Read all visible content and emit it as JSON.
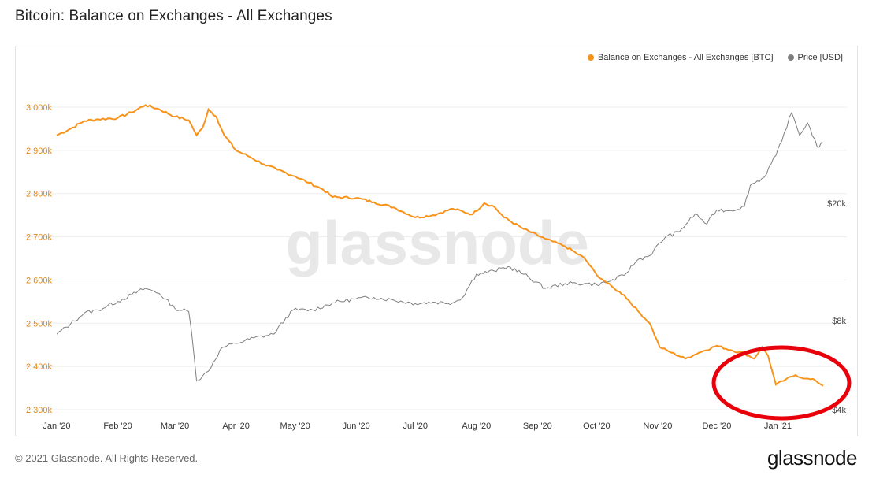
{
  "title": "Bitcoin: Balance on Exchanges - All Exchanges",
  "footer": {
    "copyright": "© 2021 Glassnode. All Rights Reserved.",
    "logo": "glassnode"
  },
  "watermark": "glassnode",
  "colors": {
    "balance": "#f7931a",
    "price": "#7f7f7f",
    "annotation": "#e8000b"
  },
  "chart_data": {
    "type": "line",
    "title": "Bitcoin: Balance on Exchanges - All Exchanges",
    "x_tick_labels": [
      "Jan '20",
      "Feb '20",
      "Mar '20",
      "Apr '20",
      "May '20",
      "Jun '20",
      "Jul '20",
      "Aug '20",
      "Sep '20",
      "Oct '20",
      "Nov '20",
      "Dec '20",
      "Jan '21"
    ],
    "y_left": {
      "ticks": [
        2300000,
        2400000,
        2500000,
        2600000,
        2700000,
        2800000,
        2900000,
        3000000
      ],
      "tick_labels": [
        "2 300k",
        "2 400k",
        "2 500k",
        "2 600k",
        "2 700k",
        "2 800k",
        "2 900k",
        "3 000k"
      ],
      "range": [
        2290000,
        3050000
      ]
    },
    "y_right": {
      "scale": "log",
      "ticks": [
        4000,
        8000,
        20000
      ],
      "tick_labels": [
        "$4k",
        "$8k",
        "$20k"
      ]
    },
    "legend_position": "top-right",
    "series": [
      {
        "name": "Balance on Exchanges - All Exchanges [BTC]",
        "axis": "left",
        "points": [
          [
            "2020-01-01",
            2935000
          ],
          [
            "2020-01-08",
            2950000
          ],
          [
            "2020-01-15",
            2968000
          ],
          [
            "2020-01-22",
            2972000
          ],
          [
            "2020-02-01",
            2975000
          ],
          [
            "2020-02-08",
            2988000
          ],
          [
            "2020-02-15",
            3005000
          ],
          [
            "2020-02-22",
            2995000
          ],
          [
            "2020-03-01",
            2978000
          ],
          [
            "2020-03-08",
            2970000
          ],
          [
            "2020-03-12",
            2935000
          ],
          [
            "2020-03-15",
            2952000
          ],
          [
            "2020-03-18",
            2995000
          ],
          [
            "2020-03-22",
            2978000
          ],
          [
            "2020-03-26",
            2935000
          ],
          [
            "2020-04-01",
            2900000
          ],
          [
            "2020-04-08",
            2885000
          ],
          [
            "2020-04-15",
            2868000
          ],
          [
            "2020-04-22",
            2855000
          ],
          [
            "2020-05-01",
            2840000
          ],
          [
            "2020-05-08",
            2825000
          ],
          [
            "2020-05-15",
            2810000
          ],
          [
            "2020-05-20",
            2792000
          ],
          [
            "2020-06-01",
            2790000
          ],
          [
            "2020-06-10",
            2780000
          ],
          [
            "2020-06-20",
            2768000
          ],
          [
            "2020-07-01",
            2745000
          ],
          [
            "2020-07-10",
            2750000
          ],
          [
            "2020-07-20",
            2765000
          ],
          [
            "2020-07-30",
            2752000
          ],
          [
            "2020-08-05",
            2778000
          ],
          [
            "2020-08-10",
            2770000
          ],
          [
            "2020-08-15",
            2745000
          ],
          [
            "2020-08-25",
            2718000
          ],
          [
            "2020-09-05",
            2695000
          ],
          [
            "2020-09-15",
            2678000
          ],
          [
            "2020-09-25",
            2650000
          ],
          [
            "2020-10-01",
            2612000
          ],
          [
            "2020-10-05",
            2598000
          ],
          [
            "2020-10-10",
            2580000
          ],
          [
            "2020-10-15",
            2565000
          ],
          [
            "2020-10-22",
            2528000
          ],
          [
            "2020-10-28",
            2500000
          ],
          [
            "2020-11-02",
            2445000
          ],
          [
            "2020-11-08",
            2432000
          ],
          [
            "2020-11-15",
            2418000
          ],
          [
            "2020-11-22",
            2432000
          ],
          [
            "2020-12-01",
            2448000
          ],
          [
            "2020-12-08",
            2438000
          ],
          [
            "2020-12-15",
            2430000
          ],
          [
            "2020-12-20",
            2418000
          ],
          [
            "2020-12-24",
            2445000
          ],
          [
            "2020-12-27",
            2425000
          ],
          [
            "2020-12-31",
            2358000
          ],
          [
            "2021-01-05",
            2370000
          ],
          [
            "2021-01-10",
            2380000
          ],
          [
            "2021-01-15",
            2372000
          ],
          [
            "2021-01-20",
            2368000
          ],
          [
            "2021-01-24",
            2355000
          ]
        ]
      },
      {
        "name": "Price [USD]",
        "axis": "right",
        "points": [
          [
            "2020-01-01",
            7200
          ],
          [
            "2020-01-08",
            7800
          ],
          [
            "2020-01-15",
            8500
          ],
          [
            "2020-01-22",
            8700
          ],
          [
            "2020-02-01",
            9300
          ],
          [
            "2020-02-08",
            9800
          ],
          [
            "2020-02-15",
            10300
          ],
          [
            "2020-02-22",
            9900
          ],
          [
            "2020-03-01",
            8800
          ],
          [
            "2020-03-08",
            8600
          ],
          [
            "2020-03-12",
            5000
          ],
          [
            "2020-03-15",
            5200
          ],
          [
            "2020-03-18",
            5400
          ],
          [
            "2020-03-25",
            6500
          ],
          [
            "2020-04-01",
            6700
          ],
          [
            "2020-04-10",
            7000
          ],
          [
            "2020-04-20",
            7200
          ],
          [
            "2020-04-30",
            8700
          ],
          [
            "2020-05-10",
            8700
          ],
          [
            "2020-05-20",
            9200
          ],
          [
            "2020-06-01",
            9500
          ],
          [
            "2020-06-10",
            9600
          ],
          [
            "2020-06-20",
            9400
          ],
          [
            "2020-07-01",
            9150
          ],
          [
            "2020-07-10",
            9250
          ],
          [
            "2020-07-20",
            9200
          ],
          [
            "2020-07-25",
            9600
          ],
          [
            "2020-08-01",
            11500
          ],
          [
            "2020-08-10",
            11800
          ],
          [
            "2020-08-17",
            12200
          ],
          [
            "2020-08-25",
            11500
          ],
          [
            "2020-09-05",
            10300
          ],
          [
            "2020-09-15",
            10700
          ],
          [
            "2020-09-25",
            10700
          ],
          [
            "2020-10-01",
            10600
          ],
          [
            "2020-10-08",
            10900
          ],
          [
            "2020-10-15",
            11400
          ],
          [
            "2020-10-22",
            12900
          ],
          [
            "2020-10-28",
            13300
          ],
          [
            "2020-11-05",
            15400
          ],
          [
            "2020-11-12",
            16000
          ],
          [
            "2020-11-20",
            18400
          ],
          [
            "2020-11-26",
            17000
          ],
          [
            "2020-12-01",
            19000
          ],
          [
            "2020-12-08",
            18900
          ],
          [
            "2020-12-15",
            19500
          ],
          [
            "2020-12-18",
            23000
          ],
          [
            "2020-12-25",
            24500
          ],
          [
            "2020-12-31",
            29000
          ],
          [
            "2021-01-03",
            32500
          ],
          [
            "2021-01-08",
            40500
          ],
          [
            "2021-01-12",
            34000
          ],
          [
            "2021-01-16",
            37500
          ],
          [
            "2021-01-21",
            31000
          ],
          [
            "2021-01-24",
            32000
          ]
        ]
      }
    ]
  }
}
